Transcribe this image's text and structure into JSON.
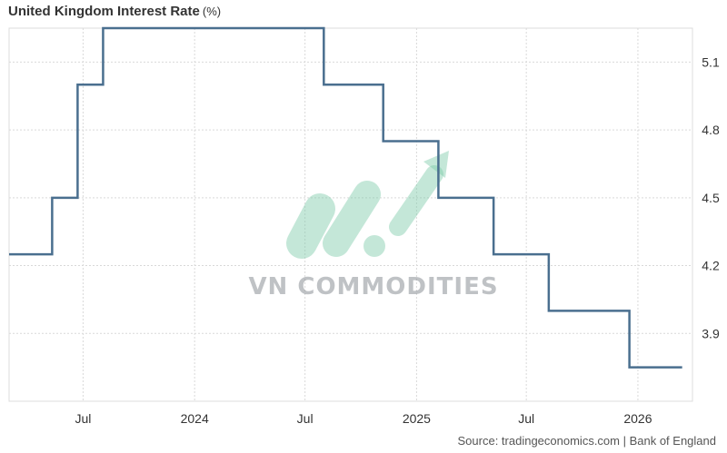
{
  "chart_data": {
    "type": "line",
    "step": true,
    "title": "United Kingdom Interest Rate",
    "unit": "(%)",
    "xlabel": "",
    "ylabel": "",
    "x_ticks": [
      "Jul",
      "2024",
      "Jul",
      "2025",
      "Jul",
      "2026"
    ],
    "x_tick_dates": [
      "2023-07-01",
      "2024-01-01",
      "2024-07-01",
      "2025-01-01",
      "2025-07-01",
      "2026-01-01"
    ],
    "y_ticks": [
      3.9,
      4.2,
      4.5,
      4.8,
      5.1
    ],
    "ylim": [
      3.6,
      5.25
    ],
    "xlim": [
      "2023-03-01",
      "2026-04-01"
    ],
    "grid": true,
    "series": [
      {
        "color": "#4a6f8f",
        "points": [
          {
            "x": "2023-03-01",
            "y": 4.25
          },
          {
            "x": "2023-05-11",
            "y": 4.5
          },
          {
            "x": "2023-06-22",
            "y": 5.0
          },
          {
            "x": "2023-08-03",
            "y": 5.25
          },
          {
            "x": "2024-08-01",
            "y": 5.0
          },
          {
            "x": "2024-11-07",
            "y": 4.75
          },
          {
            "x": "2025-02-06",
            "y": 4.5
          },
          {
            "x": "2025-05-08",
            "y": 4.25
          },
          {
            "x": "2025-08-07",
            "y": 4.0
          },
          {
            "x": "2025-12-18",
            "y": 3.75
          },
          {
            "x": "2026-03-15",
            "y": 3.75
          }
        ]
      }
    ]
  },
  "watermark": {
    "text": "VN COMMODITIES",
    "color": "#7cc9a8"
  },
  "source": "Source: tradingeconomics.com | Bank of England"
}
